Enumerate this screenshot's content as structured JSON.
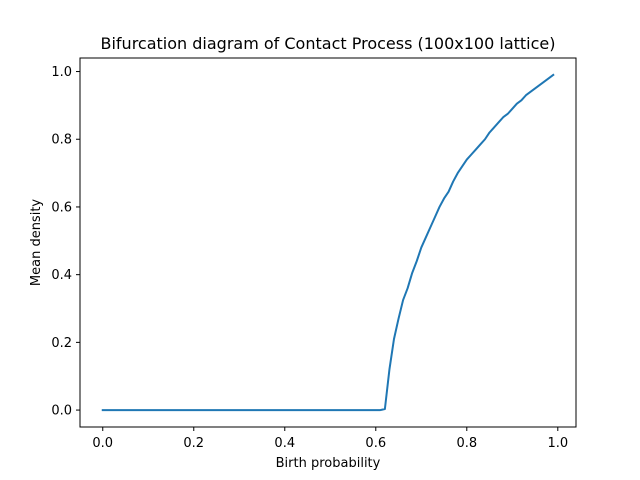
{
  "chart_data": {
    "type": "line",
    "title": "Bifurcation diagram of Contact Process (100x100 lattice)",
    "xlabel": "Birth probability",
    "ylabel": "Mean density",
    "xlim": [
      -0.05,
      1.04
    ],
    "ylim": [
      -0.05,
      1.04
    ],
    "xticks": [
      0.0,
      0.2,
      0.4,
      0.6,
      0.8,
      1.0
    ],
    "xtick_labels": [
      "0.0",
      "0.2",
      "0.4",
      "0.6",
      "0.8",
      "1.0"
    ],
    "yticks": [
      0.0,
      0.2,
      0.4,
      0.6,
      0.8,
      1.0
    ],
    "ytick_labels": [
      "0.0",
      "0.2",
      "0.4",
      "0.6",
      "0.8",
      "1.0"
    ],
    "grid": false,
    "series": [
      {
        "color": "#1f77b4",
        "x": [
          0.0,
          0.61,
          0.62,
          0.63,
          0.64,
          0.65,
          0.66,
          0.67,
          0.68,
          0.69,
          0.7,
          0.71,
          0.72,
          0.73,
          0.74,
          0.75,
          0.76,
          0.77,
          0.78,
          0.79,
          0.8,
          0.81,
          0.82,
          0.83,
          0.84,
          0.85,
          0.86,
          0.87,
          0.88,
          0.89,
          0.9,
          0.91,
          0.92,
          0.93,
          0.94,
          0.95,
          0.96,
          0.97,
          0.98,
          0.99
        ],
        "y": [
          0.0,
          0.0,
          0.003,
          0.12,
          0.21,
          0.27,
          0.325,
          0.36,
          0.405,
          0.44,
          0.48,
          0.51,
          0.54,
          0.57,
          0.6,
          0.625,
          0.645,
          0.675,
          0.7,
          0.72,
          0.74,
          0.755,
          0.77,
          0.785,
          0.8,
          0.82,
          0.835,
          0.85,
          0.865,
          0.875,
          0.89,
          0.905,
          0.915,
          0.93,
          0.94,
          0.95,
          0.96,
          0.97,
          0.98,
          0.99
        ]
      }
    ]
  }
}
